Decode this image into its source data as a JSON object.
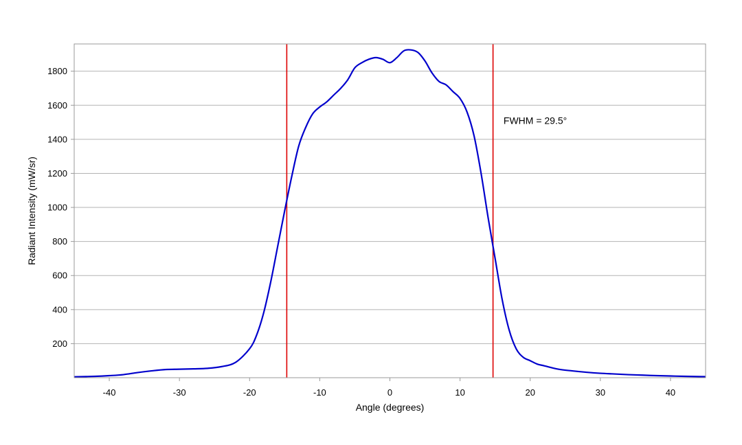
{
  "chart_data": {
    "type": "line",
    "title": "",
    "xlabel": "Angle (degrees)",
    "ylabel": "Radiant Intensity (mW/sr)",
    "xlim": [
      -45,
      45
    ],
    "ylim": [
      0,
      1960
    ],
    "xticks": [
      -40,
      -30,
      -20,
      -10,
      0,
      10,
      20,
      30,
      40
    ],
    "yticks": [
      200,
      400,
      600,
      800,
      1000,
      1200,
      1400,
      1600,
      1800
    ],
    "grid": "horizontal",
    "legend": "none",
    "series": [
      {
        "color": "#0000cc",
        "x": [
          -45,
          -42,
          -40,
          -38,
          -36,
          -34,
          -32,
          -30,
          -28,
          -26,
          -24,
          -22,
          -20,
          -19,
          -18,
          -17,
          -16,
          -15,
          -14,
          -13,
          -12,
          -11,
          -10,
          -9,
          -8,
          -7,
          -6,
          -5,
          -4,
          -3,
          -2,
          -1,
          0,
          1,
          2,
          3,
          4,
          5,
          6,
          7,
          8,
          9,
          10,
          11,
          12,
          13,
          14,
          15,
          16,
          17,
          18,
          19,
          20,
          21,
          22,
          24,
          26,
          28,
          30,
          32,
          34,
          36,
          38,
          40,
          42,
          45
        ],
        "y": [
          5,
          8,
          12,
          18,
          30,
          40,
          48,
          50,
          52,
          55,
          65,
          90,
          170,
          250,
          380,
          560,
          770,
          980,
          1180,
          1360,
          1470,
          1550,
          1590,
          1620,
          1660,
          1700,
          1750,
          1820,
          1850,
          1870,
          1880,
          1870,
          1850,
          1880,
          1920,
          1925,
          1910,
          1860,
          1790,
          1740,
          1720,
          1680,
          1640,
          1560,
          1420,
          1200,
          940,
          700,
          460,
          280,
          170,
          120,
          100,
          80,
          70,
          50,
          40,
          32,
          26,
          22,
          18,
          15,
          12,
          10,
          8,
          6
        ]
      }
    ],
    "vlines": [
      {
        "x": -14.7,
        "color": "#dd0000"
      },
      {
        "x": 14.7,
        "color": "#dd0000"
      }
    ],
    "annotations": [
      {
        "text": "FWHM = 29.5°",
        "x": 16.2,
        "y": 1490
      }
    ]
  }
}
